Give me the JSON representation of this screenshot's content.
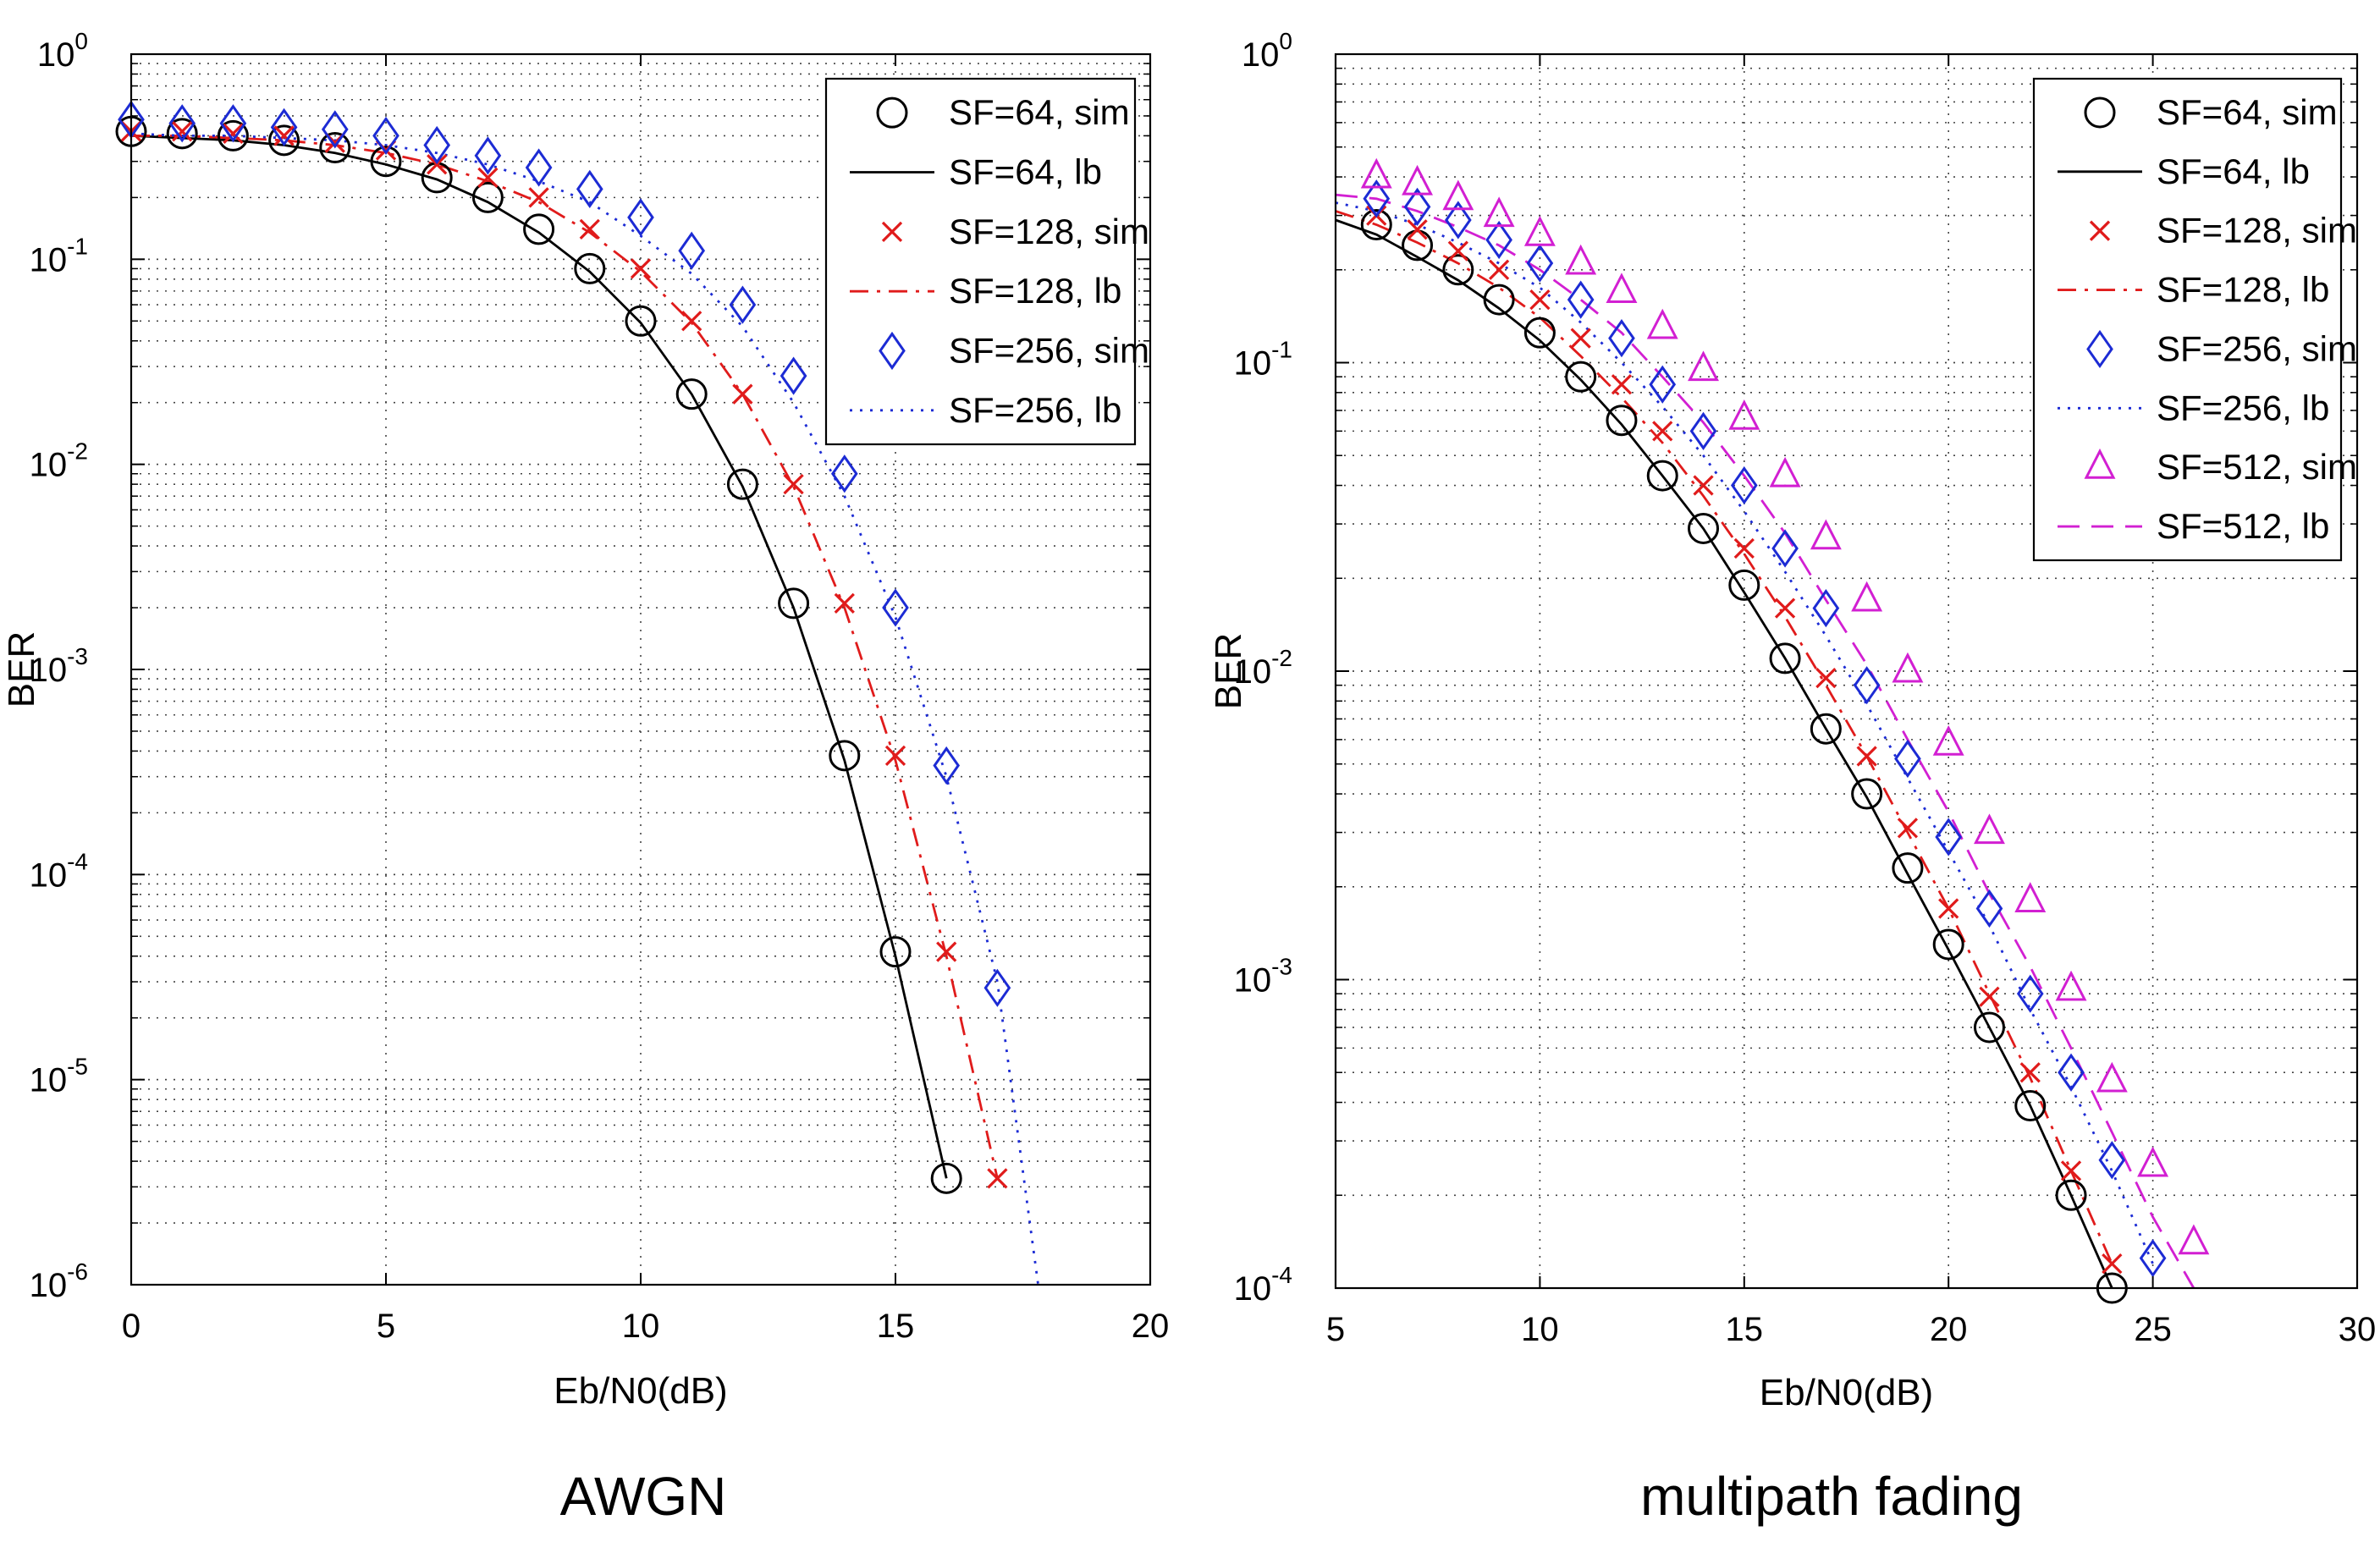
{
  "chart_data": [
    {
      "type": "line",
      "caption": "AWGN",
      "xlabel": "Eb/N0(dB)",
      "ylabel": "BER",
      "yscale": "log",
      "xlim": [
        0,
        20
      ],
      "ylim": [
        1e-06,
        1
      ],
      "xticks": [
        0,
        5,
        10,
        15,
        20
      ],
      "yticks": [
        0,
        -1,
        -2,
        -3,
        -4,
        -5,
        -6
      ],
      "ytick_base": "10",
      "grid": true,
      "legend_position": "top-right",
      "series": [
        {
          "name": "SF=64, sim",
          "marker": "circle",
          "line": "none",
          "color": "#000000",
          "x": [
            0,
            1,
            2,
            3,
            4,
            5,
            6,
            7,
            8,
            9,
            10,
            11,
            12,
            13,
            14,
            15,
            16
          ],
          "y": [
            0.42,
            0.41,
            0.4,
            0.38,
            0.35,
            0.3,
            0.25,
            0.2,
            0.14,
            0.09,
            0.05,
            0.022,
            0.008,
            0.0021,
            0.00038,
            4.2e-05,
            3.3e-06
          ]
        },
        {
          "name": "SF=64, lb",
          "marker": "none",
          "line": "solid",
          "color": "#000000",
          "x": [
            0,
            1,
            2,
            3,
            4,
            5,
            6,
            7,
            8,
            9,
            10,
            11,
            12,
            13,
            14,
            15,
            16
          ],
          "y": [
            0.4,
            0.39,
            0.38,
            0.36,
            0.33,
            0.29,
            0.245,
            0.19,
            0.135,
            0.087,
            0.049,
            0.022,
            0.0078,
            0.002,
            0.00036,
            4e-05,
            3.3e-06
          ]
        },
        {
          "name": "SF=128, sim",
          "marker": "x",
          "line": "none",
          "color": "#e01b1b",
          "x": [
            0,
            1,
            2,
            3,
            4,
            5,
            6,
            7,
            8,
            9,
            10,
            11,
            12,
            13,
            14,
            15,
            16,
            17
          ],
          "y": [
            0.42,
            0.42,
            0.41,
            0.4,
            0.37,
            0.34,
            0.29,
            0.25,
            0.2,
            0.14,
            0.09,
            0.05,
            0.022,
            0.008,
            0.0021,
            0.00038,
            4.2e-05,
            3.3e-06
          ]
        },
        {
          "name": "SF=128, lb",
          "marker": "none",
          "line": "dashdot",
          "color": "#e01b1b",
          "x": [
            0,
            1,
            2,
            3,
            4,
            5,
            6,
            7,
            8,
            9,
            10,
            11,
            12,
            13,
            14,
            15,
            16,
            17
          ],
          "y": [
            0.4,
            0.4,
            0.39,
            0.38,
            0.36,
            0.33,
            0.29,
            0.24,
            0.19,
            0.135,
            0.087,
            0.049,
            0.022,
            0.0078,
            0.002,
            0.00036,
            4e-05,
            3.3e-06
          ]
        },
        {
          "name": "SF=256, sim",
          "marker": "diamond",
          "line": "none",
          "color": "#1c2bd4",
          "x": [
            0,
            1,
            2,
            3,
            4,
            5,
            6,
            7,
            8,
            9,
            10,
            11,
            12,
            13,
            14,
            15,
            16,
            17
          ],
          "y": [
            0.48,
            0.46,
            0.46,
            0.44,
            0.43,
            0.4,
            0.36,
            0.32,
            0.28,
            0.22,
            0.16,
            0.11,
            0.06,
            0.027,
            0.009,
            0.002,
            0.00034,
            2.8e-05
          ]
        },
        {
          "name": "SF=256, lb",
          "marker": "none",
          "line": "dotted",
          "color": "#1c2bd4",
          "x": [
            0,
            1,
            2,
            3,
            4,
            5,
            6,
            7,
            8,
            9,
            10,
            11,
            12,
            13,
            14,
            15,
            16,
            17,
            17.8
          ],
          "y": [
            0.41,
            0.4,
            0.4,
            0.39,
            0.38,
            0.36,
            0.33,
            0.29,
            0.24,
            0.19,
            0.13,
            0.085,
            0.047,
            0.02,
            0.007,
            0.0018,
            0.0003,
            3e-05,
            1e-06
          ]
        }
      ]
    },
    {
      "type": "line",
      "caption": "multipath fading",
      "xlabel": "Eb/N0(dB)",
      "ylabel": "BER",
      "yscale": "log",
      "xlim": [
        5,
        30
      ],
      "ylim": [
        0.0001,
        1
      ],
      "xticks": [
        5,
        10,
        15,
        20,
        25,
        30
      ],
      "yticks": [
        0,
        -1,
        -2,
        -3,
        -4
      ],
      "ytick_base": "10",
      "grid": true,
      "legend_position": "top-right",
      "series": [
        {
          "name": "SF=64, sim",
          "marker": "circle",
          "line": "none",
          "color": "#000000",
          "x": [
            6,
            7,
            8,
            9,
            10,
            11,
            12,
            13,
            14,
            15,
            16,
            17,
            18,
            19,
            20,
            21,
            22,
            23,
            24
          ],
          "y": [
            0.28,
            0.24,
            0.2,
            0.16,
            0.125,
            0.09,
            0.065,
            0.043,
            0.029,
            0.019,
            0.011,
            0.0065,
            0.004,
            0.0023,
            0.0013,
            0.0007,
            0.00039,
            0.0002,
            0.0001
          ]
        },
        {
          "name": "SF=64, lb",
          "marker": "none",
          "line": "solid",
          "color": "#000000",
          "x": [
            5,
            6,
            7,
            8,
            9,
            10,
            11,
            12,
            13,
            14,
            15,
            16,
            17,
            18,
            19,
            20,
            21,
            22,
            23,
            24
          ],
          "y": [
            0.29,
            0.26,
            0.22,
            0.185,
            0.15,
            0.118,
            0.088,
            0.063,
            0.043,
            0.029,
            0.018,
            0.011,
            0.0065,
            0.0039,
            0.0022,
            0.00125,
            0.0007,
            0.00039,
            0.0002,
            0.0001
          ]
        },
        {
          "name": "SF=128, sim",
          "marker": "x",
          "line": "none",
          "color": "#e01b1b",
          "x": [
            6,
            7,
            8,
            9,
            10,
            11,
            12,
            13,
            14,
            15,
            16,
            17,
            18,
            19,
            20,
            21,
            22,
            23,
            24
          ],
          "y": [
            0.3,
            0.27,
            0.23,
            0.2,
            0.16,
            0.12,
            0.085,
            0.06,
            0.04,
            0.025,
            0.016,
            0.0095,
            0.0053,
            0.0031,
            0.0017,
            0.00088,
            0.0005,
            0.00024,
            0.00012
          ]
        },
        {
          "name": "SF=128, lb",
          "marker": "none",
          "line": "dashdot",
          "color": "#e01b1b",
          "x": [
            5,
            6,
            7,
            8,
            9,
            10,
            11,
            12,
            13,
            14,
            15,
            16,
            17,
            18,
            19,
            20,
            21,
            22,
            23,
            24
          ],
          "y": [
            0.31,
            0.28,
            0.245,
            0.21,
            0.175,
            0.14,
            0.105,
            0.077,
            0.055,
            0.037,
            0.024,
            0.015,
            0.009,
            0.0053,
            0.003,
            0.0017,
            0.0009,
            0.00048,
            0.00024,
            0.00012
          ]
        },
        {
          "name": "SF=256, sim",
          "marker": "diamond",
          "line": "none",
          "color": "#1c2bd4",
          "x": [
            6,
            7,
            8,
            9,
            10,
            11,
            12,
            13,
            14,
            15,
            16,
            17,
            18,
            19,
            20,
            21,
            22,
            23,
            24,
            25
          ],
          "y": [
            0.34,
            0.32,
            0.29,
            0.25,
            0.21,
            0.16,
            0.12,
            0.085,
            0.06,
            0.04,
            0.025,
            0.016,
            0.009,
            0.0052,
            0.0029,
            0.0017,
            0.0009,
            0.0005,
            0.00026,
            0.000125
          ]
        },
        {
          "name": "SF=256, lb",
          "marker": "none",
          "line": "dotted",
          "color": "#1c2bd4",
          "x": [
            5,
            6,
            7,
            8,
            9,
            10,
            11,
            12,
            13,
            14,
            15,
            16,
            17,
            18,
            19,
            20,
            21,
            22,
            23,
            24,
            25
          ],
          "y": [
            0.33,
            0.31,
            0.28,
            0.245,
            0.21,
            0.175,
            0.135,
            0.1,
            0.072,
            0.05,
            0.033,
            0.021,
            0.013,
            0.0078,
            0.0045,
            0.0026,
            0.0015,
            0.0008,
            0.00045,
            0.00024,
            0.00012
          ]
        },
        {
          "name": "SF=512, sim",
          "marker": "triangle",
          "line": "none",
          "color": "#d21fd2",
          "x": [
            6,
            7,
            8,
            9,
            10,
            11,
            12,
            13,
            14,
            15,
            16,
            17,
            18,
            19,
            20,
            21,
            22,
            23,
            24,
            25,
            26
          ],
          "y": [
            0.4,
            0.38,
            0.34,
            0.3,
            0.26,
            0.21,
            0.17,
            0.13,
            0.095,
            0.066,
            0.043,
            0.027,
            0.017,
            0.01,
            0.0058,
            0.003,
            0.0018,
            0.00093,
            0.00047,
            0.00025,
            0.00014
          ]
        },
        {
          "name": "SF=512, lb",
          "marker": "none",
          "line": "dashed",
          "color": "#d21fd2",
          "x": [
            5,
            6,
            7,
            8,
            9,
            10,
            11,
            12,
            13,
            14,
            15,
            16,
            17,
            18,
            19,
            20,
            21,
            22,
            23,
            24,
            25,
            26
          ],
          "y": [
            0.35,
            0.34,
            0.31,
            0.275,
            0.24,
            0.2,
            0.16,
            0.125,
            0.09,
            0.064,
            0.043,
            0.028,
            0.017,
            0.0105,
            0.006,
            0.0035,
            0.0019,
            0.0011,
            0.0006,
            0.00032,
            0.00017,
            0.0001
          ]
        }
      ]
    }
  ]
}
